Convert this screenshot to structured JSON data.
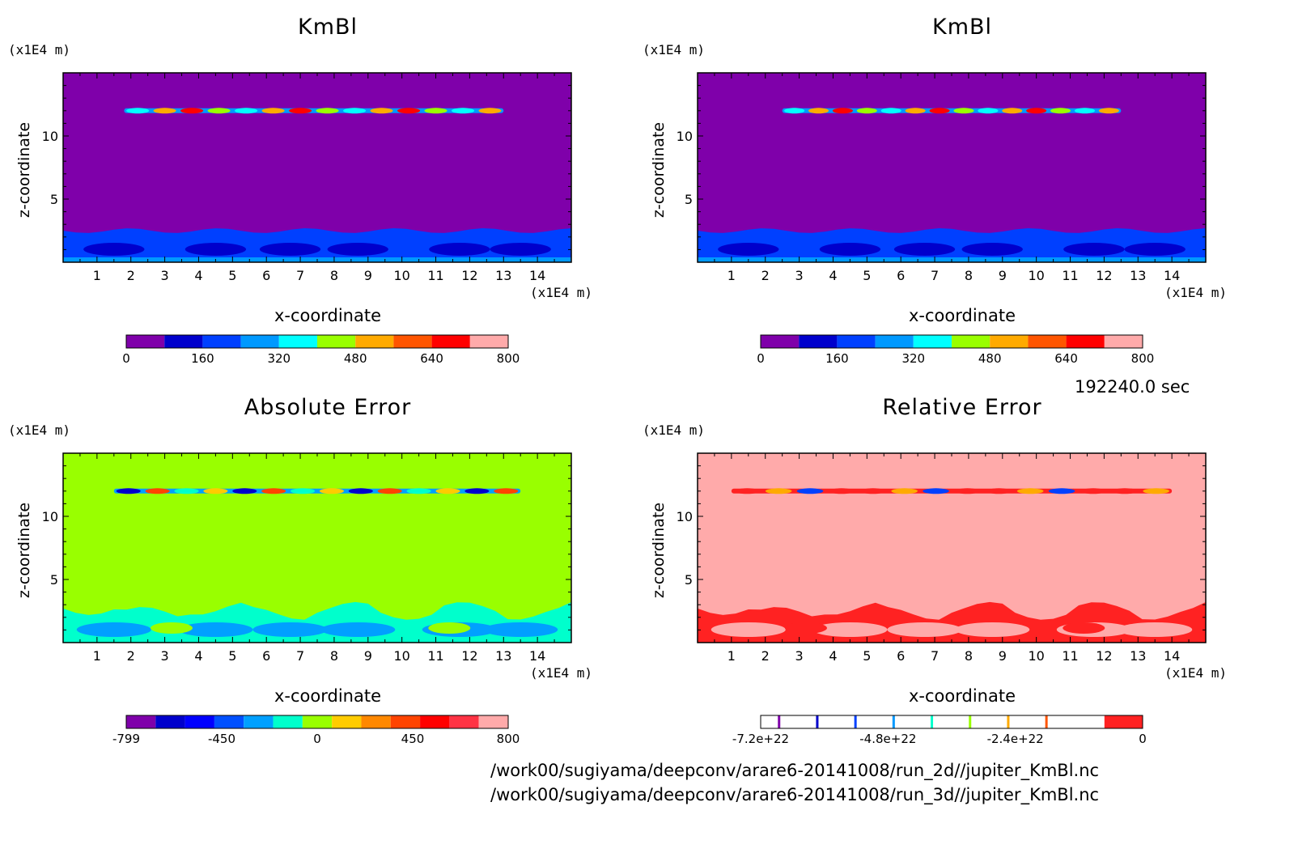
{
  "time_label": "192240.0 sec",
  "files": [
    "/work00/sugiyama/deepconv/arare6-20141008/run_2d//jupiter_KmBl.nc",
    "/work00/sugiyama/deepconv/arare6-20141008/run_3d//jupiter_KmBl.nc"
  ],
  "chart_data": [
    {
      "type": "heatmap",
      "title": "KmBl",
      "xlabel": "x-coordinate",
      "ylabel": "z-coordinate",
      "x_unit": "(x1E4 m)",
      "z_unit": "(x1E4 m)",
      "xlim": [
        0,
        15
      ],
      "zlim": [
        0,
        15
      ],
      "x_ticks": [
        1,
        2,
        3,
        4,
        5,
        6,
        7,
        8,
        9,
        10,
        11,
        12,
        13,
        14
      ],
      "z_ticks": [
        5,
        10
      ],
      "background_color": "#7F00AA",
      "colorbar": {
        "colors": [
          "#7F00AA",
          "#0000CC",
          "#0040FF",
          "#0099FF",
          "#00FFFF",
          "#99FF00",
          "#FFAA00",
          "#FF5500",
          "#FF0000",
          "#FFAAAA"
        ],
        "tick_labels": [
          "0",
          "160",
          "320",
          "480",
          "640",
          "800"
        ]
      },
      "features": {
        "upper_band_z": 12,
        "upper_band_x": [
          1.8,
          13.0
        ],
        "lower_layer_top_z": 2.5
      }
    },
    {
      "type": "heatmap",
      "title": "KmBl",
      "xlabel": "x-coordinate",
      "ylabel": "z-coordinate",
      "x_unit": "(x1E4 m)",
      "z_unit": "(x1E4 m)",
      "xlim": [
        0,
        15
      ],
      "zlim": [
        0,
        15
      ],
      "x_ticks": [
        1,
        2,
        3,
        4,
        5,
        6,
        7,
        8,
        9,
        10,
        11,
        12,
        13,
        14
      ],
      "z_ticks": [
        5,
        10
      ],
      "background_color": "#7F00AA",
      "colorbar": {
        "colors": [
          "#7F00AA",
          "#0000CC",
          "#0040FF",
          "#0099FF",
          "#00FFFF",
          "#99FF00",
          "#FFAA00",
          "#FF5500",
          "#FF0000",
          "#FFAAAA"
        ],
        "tick_labels": [
          "0",
          "160",
          "320",
          "480",
          "640",
          "800"
        ]
      },
      "features": {
        "upper_band_z": 12,
        "upper_band_x": [
          2.5,
          12.5
        ],
        "lower_layer_top_z": 2.5
      }
    },
    {
      "type": "heatmap",
      "title": "Absolute Error",
      "xlabel": "x-coordinate",
      "ylabel": "z-coordinate",
      "x_unit": "(x1E4 m)",
      "z_unit": "(x1E4 m)",
      "xlim": [
        0,
        15
      ],
      "zlim": [
        0,
        15
      ],
      "x_ticks": [
        1,
        2,
        3,
        4,
        5,
        6,
        7,
        8,
        9,
        10,
        11,
        12,
        13,
        14
      ],
      "z_ticks": [
        5,
        10
      ],
      "background_color": "#99FF00",
      "colorbar": {
        "colors": [
          "#7F00AA",
          "#0000CC",
          "#0000FF",
          "#0050FF",
          "#00A0FF",
          "#00FFCC",
          "#99FF00",
          "#FFCC00",
          "#FF8800",
          "#FF4400",
          "#FF0000",
          "#FF3344",
          "#FFAAAA"
        ],
        "tick_labels": [
          "-799",
          "-450",
          "0",
          "450",
          "800"
        ]
      },
      "features": {
        "upper_band_z": 12,
        "upper_band_x": [
          1.5,
          13.5
        ],
        "lower_layer_top_z": 2.7
      }
    },
    {
      "type": "heatmap",
      "title": "Relative Error",
      "xlabel": "x-coordinate",
      "ylabel": "z-coordinate",
      "x_unit": "(x1E4 m)",
      "z_unit": "(x1E4 m)",
      "xlim": [
        0,
        15
      ],
      "zlim": [
        0,
        15
      ],
      "x_ticks": [
        1,
        2,
        3,
        4,
        5,
        6,
        7,
        8,
        9,
        10,
        11,
        12,
        13,
        14
      ],
      "z_ticks": [
        5,
        10
      ],
      "background_color": "#FFAAAA",
      "colorbar": {
        "colors": [
          "#FFFFFF",
          "#FFFFFF",
          "#FFFFFF",
          "#FFFFFF",
          "#FFFFFF",
          "#FFFFFF",
          "#FFFFFF",
          "#FFFFFF",
          "#FFFFFF",
          "#FF2222"
        ],
        "line_colors": [
          "#7F00AA",
          "#0000CC",
          "#0040FF",
          "#0099FF",
          "#00FFCC",
          "#99FF00",
          "#FFAA00",
          "#FF5500"
        ],
        "tick_labels": [
          "-7.2e+22",
          "-4.8e+22",
          "-2.4e+22",
          "0"
        ]
      },
      "features": {
        "upper_band_z": 12,
        "upper_band_x": [
          1.0,
          14.0
        ],
        "lower_layer_top_z": 2.7
      }
    }
  ]
}
